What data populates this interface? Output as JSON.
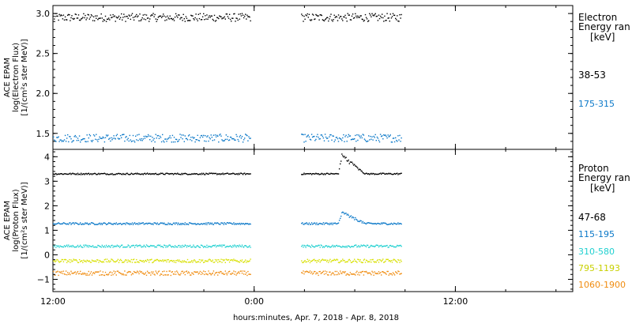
{
  "chart_data": [
    {
      "type": "scatter",
      "ylabel_lines": [
        "ACE EPAM",
        "log(Electron Flux)",
        "[1/(cm²s ster MeV)]"
      ],
      "ylim": [
        1.3,
        3.1
      ],
      "yticks": [
        1.5,
        2.0,
        2.5,
        3.0
      ],
      "ytick_labels": [
        "1.5",
        "2.0",
        "2.5",
        "3.0"
      ],
      "legend_title": [
        "Electron",
        "Energy ran",
        "[keV]"
      ],
      "legend_placement": "right",
      "x_hours_range": [
        12,
        43
      ],
      "series": [
        {
          "name": "38-53",
          "color": "#000000",
          "level": 2.95,
          "jitter": 0.05,
          "segments": [
            [
              12,
              23.8
            ],
            [
              26.8,
              32.8
            ]
          ]
        },
        {
          "name": "175-315",
          "color": "#0a78c8",
          "level": 1.44,
          "jitter": 0.05,
          "segments": [
            [
              12,
              23.8
            ],
            [
              26.8,
              32.8
            ]
          ]
        }
      ]
    },
    {
      "type": "scatter",
      "ylabel_lines": [
        "ACE EPAM",
        "log(Proton Flux)",
        "[1/(cm²s ster MeV)]"
      ],
      "ylim": [
        -1.5,
        4.3
      ],
      "yticks": [
        -1,
        0,
        1,
        2,
        3,
        4
      ],
      "ytick_labels": [
        "−1",
        "0",
        "1",
        "2",
        "3",
        "4"
      ],
      "legend_title": [
        "Proton",
        "Energy ran",
        "[keV]"
      ],
      "legend_placement": "right",
      "x_hours_range": [
        12,
        43
      ],
      "series": [
        {
          "name": "47-68",
          "color": "#000000",
          "level": 3.3,
          "jitter": 0.03,
          "segments": [
            [
              12,
              23.8
            ],
            [
              26.8,
              32.8
            ]
          ],
          "bump": {
            "start": 29.0,
            "peak": 29.2,
            "end": 30.6,
            "height": 0.75
          }
        },
        {
          "name": "115-195",
          "color": "#0a78c8",
          "level": 1.27,
          "jitter": 0.04,
          "segments": [
            [
              12,
              23.8
            ],
            [
              26.8,
              32.8
            ]
          ],
          "bump": {
            "start": 29.0,
            "peak": 29.2,
            "end": 30.6,
            "height": 0.45
          }
        },
        {
          "name": "310-580",
          "color": "#20d0d0",
          "level": 0.35,
          "jitter": 0.05,
          "segments": [
            [
              12,
              23.8
            ],
            [
              26.8,
              32.8
            ]
          ]
        },
        {
          "name": "795-1193",
          "color": "#d8e000",
          "level": -0.25,
          "jitter": 0.07,
          "segments": [
            [
              12,
              23.8
            ],
            [
              26.8,
              32.8
            ]
          ]
        },
        {
          "name": "1060-1900",
          "color": "#f08c10",
          "level": -0.75,
          "jitter": 0.09,
          "segments": [
            [
              12,
              23.8
            ],
            [
              26.8,
              32.8
            ]
          ]
        }
      ]
    }
  ],
  "x_ticks": [
    12,
    24,
    36
  ],
  "x_tick_labels": [
    "12:00",
    "0:00",
    "12:00"
  ],
  "xlabel": "hours:minutes, Apr.  7, 2018 - Apr.  8, 2018"
}
